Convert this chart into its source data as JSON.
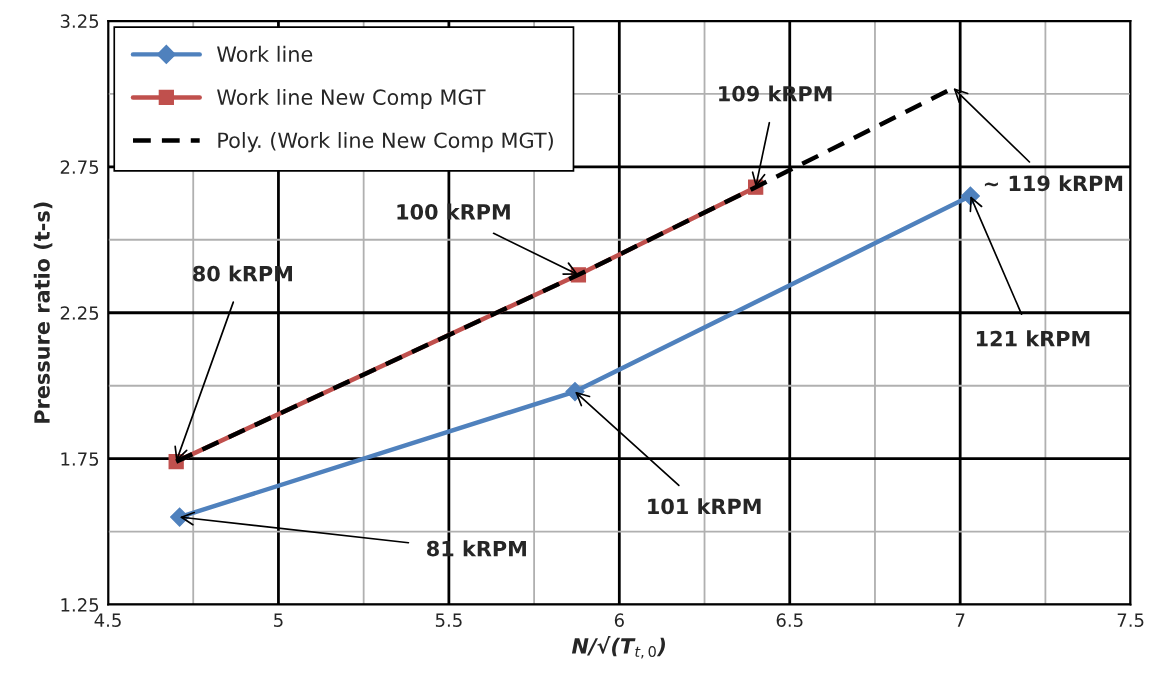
{
  "chart_data": {
    "type": "line",
    "xlabel": "N/√(T$_{t,0}$)",
    "ylabel": "Pressure ratio (t-s)",
    "series": [
      {
        "name": "Work line",
        "color": "#4f81bd",
        "marker": "diamond",
        "x": [
          4.71,
          5.87,
          7.03
        ],
        "values": [
          1.55,
          1.98,
          2.65
        ]
      },
      {
        "name": "Work line New Comp MGT",
        "color": "#c0504d",
        "marker": "square",
        "x": [
          4.7,
          5.88,
          6.4
        ],
        "values": [
          1.74,
          2.38,
          2.68
        ]
      },
      {
        "name": "Poly. (Work line New Comp MGT)",
        "color": "#000000",
        "line_style": "dashed",
        "marker": "none",
        "x": [
          4.7,
          5.88,
          6.4,
          6.98
        ],
        "values": [
          1.74,
          2.38,
          2.68,
          3.02
        ]
      }
    ],
    "xlim": [
      4.5,
      7.5
    ],
    "xticks": [
      4.5,
      {
        "value": 4.75,
        "label": null
      },
      5,
      {
        "value": 5.25,
        "label": null
      },
      5.5,
      {
        "value": 5.75,
        "label": null
      },
      6,
      {
        "value": 6.25,
        "label": null
      },
      6.5,
      {
        "value": 6.75,
        "label": null
      },
      7,
      {
        "value": 7.25,
        "label": null
      },
      7.5
    ],
    "ylim": [
      1.25,
      3.25
    ],
    "yticks": [
      1.25,
      {
        "value": 1.5,
        "label": null
      },
      1.75,
      {
        "value": 2.0,
        "label": null
      },
      2.25,
      {
        "value": 2.5,
        "label": null
      },
      2.75,
      {
        "value": 3.0,
        "label": null
      },
      3.25
    ],
    "grid": true,
    "legend": "top left",
    "annotations": [
      {
        "text": "80 kRPM",
        "x": 4.7,
        "y": 1.74
      },
      {
        "text": "100 kRPM",
        "x": 5.88,
        "y": 2.38
      },
      {
        "text": "109 kRPM",
        "x": 6.4,
        "y": 2.68
      },
      {
        "text": "~ 119 kRPM",
        "x": 6.98,
        "y": 3.02
      },
      {
        "text": "121 kRPM",
        "x": 7.03,
        "y": 2.65
      },
      {
        "text": "101 kRPM",
        "x": 5.87,
        "y": 1.98
      },
      {
        "text": "81 kRPM",
        "x": 4.71,
        "y": 1.55
      }
    ]
  }
}
